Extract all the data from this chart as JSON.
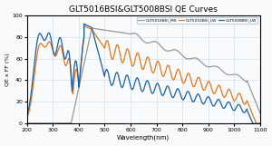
{
  "title": "GLT5016BSI&GLT5008BSI QE Curves",
  "xlabel": "Wavelength(nm)",
  "ylabel": "QE x FF (%)",
  "xlim": [
    200,
    1100
  ],
  "ylim": [
    0,
    100
  ],
  "yticks": [
    0,
    20,
    40,
    60,
    80,
    100
  ],
  "xticks": [
    200,
    300,
    400,
    500,
    600,
    700,
    800,
    900,
    1000,
    1100
  ],
  "legend": [
    {
      "label": "GLT5016BSI_MS",
      "color": "#999999"
    },
    {
      "label": "GLT5016BSI_LW",
      "color": "#E8771A"
    },
    {
      "label": "GLT5008BSI_LW",
      "color": "#1A5FA8"
    }
  ],
  "background_color": "#f8fafc",
  "grid_color": "#c8dce8"
}
